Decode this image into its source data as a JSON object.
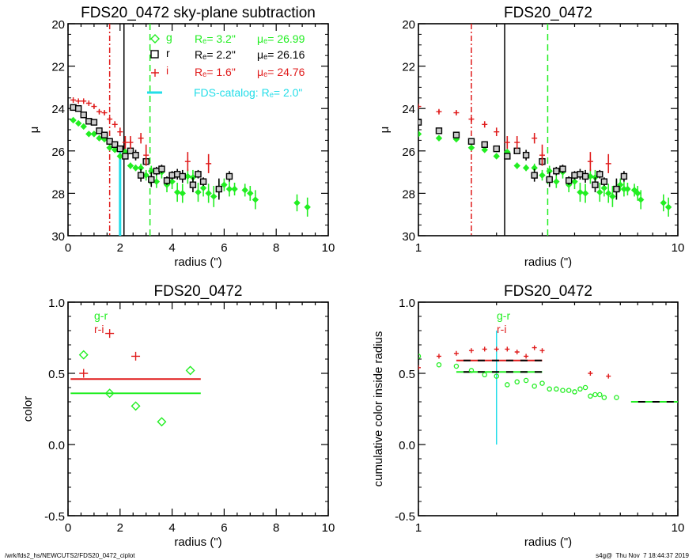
{
  "footer": {
    "left": "/wrk/fds2_hs/NEWCUTS2/FDS20_0472_ciplot",
    "right": "s4g@  Thu Nov  7 18:44:37 2019"
  },
  "colors": {
    "g": "#22ee22",
    "r": "#000000",
    "i": "#e01c1c",
    "catalog": "#22dde8"
  },
  "chart_data": [
    {
      "id": "profile-linear",
      "type": "scatter",
      "title": "FDS20_0472 sky-plane subtraction",
      "xlabel": "radius (\")",
      "ylabel": "μ",
      "xscale": "linear",
      "xlim": [
        0,
        10
      ],
      "ylim": [
        30,
        20
      ],
      "xticks": [
        0,
        2,
        4,
        6,
        8,
        10
      ],
      "yticks": [
        20,
        22,
        24,
        26,
        28,
        30
      ],
      "legend": [
        {
          "band": "g",
          "marker": "diamond",
          "text_re": "Rₑ=   3.2\"",
          "text_mu": "μₑ= 26.99"
        },
        {
          "band": "r",
          "marker": "square",
          "text_re": "Rₑ=   2.2\"",
          "text_mu": "μₑ= 26.16"
        },
        {
          "band": "i",
          "marker": "plus",
          "text_re": "Rₑ=   1.6\"",
          "text_mu": "μₑ= 24.76"
        },
        {
          "band": "catalog",
          "marker": "line",
          "text": "FDS-catalog: Rₑ=   2.0\""
        }
      ],
      "vlines": [
        {
          "x": 1.6,
          "color_key": "i",
          "style": "dashdot"
        },
        {
          "x": 2.15,
          "color_key": "r",
          "style": "solid"
        },
        {
          "x": 3.15,
          "color_key": "g",
          "style": "dashed"
        }
      ],
      "catalog_line": {
        "x": 2.0,
        "y_from": 26.0,
        "y_to": 30.0
      },
      "series": [
        {
          "name": "g",
          "marker": "diamond-filled",
          "x": [
            0.2,
            0.4,
            0.6,
            0.8,
            1.0,
            1.2,
            1.4,
            1.6,
            1.8,
            2.0,
            2.2,
            2.4,
            2.6,
            2.8,
            3.0,
            3.2,
            3.4,
            3.6,
            3.8,
            4.0,
            4.2,
            4.4,
            4.6,
            4.8,
            5.0,
            5.2,
            5.4,
            5.6,
            5.8,
            6.0,
            6.2,
            6.4,
            6.8,
            7.0,
            7.2,
            8.8,
            9.2
          ],
          "y": [
            24.55,
            24.7,
            24.85,
            25.2,
            25.2,
            25.4,
            25.45,
            25.85,
            25.95,
            26.25,
            26.05,
            26.7,
            26.8,
            26.8,
            27.15,
            26.95,
            27.45,
            27.0,
            27.6,
            27.45,
            27.95,
            28.0,
            27.2,
            27.25,
            27.95,
            27.75,
            28.0,
            28.15,
            27.8,
            27.6,
            27.8,
            27.8,
            27.85,
            28.0,
            28.3,
            28.45,
            28.65
          ],
          "err": [
            0.05,
            0.05,
            0.05,
            0.05,
            0.05,
            0.05,
            0.05,
            0.05,
            0.05,
            0.1,
            0.1,
            0.15,
            0.15,
            0.2,
            0.25,
            0.25,
            0.3,
            0.3,
            0.35,
            0.35,
            0.45,
            0.45,
            0.35,
            0.35,
            0.45,
            0.4,
            0.45,
            0.5,
            0.4,
            0.3,
            0.35,
            0.3,
            0.3,
            0.35,
            0.45,
            0.4,
            0.45
          ]
        },
        {
          "name": "r",
          "marker": "square",
          "x": [
            0.2,
            0.4,
            0.6,
            0.8,
            1.0,
            1.2,
            1.4,
            1.6,
            1.8,
            2.0,
            2.2,
            2.4,
            2.6,
            2.8,
            3.0,
            3.2,
            3.4,
            3.6,
            3.8,
            4.0,
            4.2,
            4.4,
            4.8,
            5.0,
            5.2,
            5.8,
            6.2
          ],
          "y": [
            23.95,
            24.0,
            24.3,
            24.6,
            24.65,
            25.05,
            25.25,
            25.55,
            25.7,
            25.9,
            26.25,
            26.0,
            26.2,
            27.15,
            26.5,
            27.35,
            26.95,
            26.85,
            27.4,
            27.15,
            27.1,
            27.2,
            27.6,
            27.1,
            27.45,
            27.8,
            27.2
          ],
          "err": [
            0.03,
            0.03,
            0.04,
            0.05,
            0.05,
            0.06,
            0.07,
            0.08,
            0.09,
            0.1,
            0.15,
            0.15,
            0.25,
            0.3,
            0.2,
            0.35,
            0.2,
            0.2,
            0.2,
            0.2,
            0.25,
            0.3,
            0.35,
            0.2,
            0.2,
            0.5,
            0.25
          ]
        },
        {
          "name": "i",
          "marker": "plus",
          "x": [
            0.2,
            0.4,
            0.6,
            0.8,
            1.0,
            1.2,
            1.4,
            1.6,
            1.8,
            2.0,
            2.2,
            2.4,
            2.8,
            3.0,
            4.6,
            5.4
          ],
          "y": [
            23.6,
            23.65,
            23.65,
            23.75,
            23.9,
            24.15,
            24.2,
            24.5,
            24.75,
            25.1,
            25.6,
            25.6,
            25.4,
            26.2,
            26.5,
            26.6
          ],
          "err": [
            0.05,
            0.05,
            0.05,
            0.05,
            0.08,
            0.08,
            0.08,
            0.1,
            0.15,
            0.2,
            0.3,
            0.3,
            0.25,
            0.5,
            0.45,
            0.45
          ]
        }
      ]
    },
    {
      "id": "profile-log",
      "type": "scatter",
      "title": "FDS20_0472",
      "xlabel": "radius (\")",
      "ylabel": "μ",
      "xscale": "log",
      "xlim": [
        1,
        10
      ],
      "ylim": [
        30,
        20
      ],
      "xticks": [
        1,
        10
      ],
      "yticks": [
        20,
        22,
        24,
        26,
        28,
        30
      ],
      "vlines": [
        {
          "x": 1.6,
          "color_key": "i",
          "style": "dashdot"
        },
        {
          "x": 2.15,
          "color_key": "r",
          "style": "solid"
        },
        {
          "x": 3.15,
          "color_key": "g",
          "style": "dashed"
        }
      ],
      "series_ref": "profile-linear"
    },
    {
      "id": "color-profile",
      "type": "scatter",
      "title": "FDS20_0472",
      "xlabel": "radius (\")",
      "ylabel": "color",
      "xscale": "linear",
      "xlim": [
        0,
        10
      ],
      "ylim": [
        -0.5,
        1.0
      ],
      "xticks": [
        0,
        2,
        4,
        6,
        8,
        10
      ],
      "yticks": [
        -0.5,
        0.0,
        0.5,
        1.0
      ],
      "ytick_labels": [
        "-0.5",
        "0.0",
        "0.5",
        "1.0"
      ],
      "legend": [
        {
          "name": "g-r",
          "color_key": "g"
        },
        {
          "name": "r-i",
          "color_key": "i"
        }
      ],
      "series": [
        {
          "name": "g-r",
          "marker": "diamond",
          "x": [
            0.6,
            1.6,
            2.6,
            3.6,
            4.7
          ],
          "y": [
            0.63,
            0.36,
            0.27,
            0.16,
            0.52
          ]
        },
        {
          "name": "r-i",
          "marker": "plus",
          "x": [
            0.6,
            1.6,
            2.6
          ],
          "y": [
            0.5,
            0.78,
            0.62
          ]
        }
      ],
      "hlines": [
        {
          "name": "r-i mean",
          "color_key": "i",
          "y": 0.46,
          "x_from": 0.1,
          "x_to": 5.1
        },
        {
          "name": "g-r mean",
          "color_key": "g",
          "y": 0.36,
          "x_from": 0.1,
          "x_to": 5.1
        }
      ]
    },
    {
      "id": "cumulative-color",
      "type": "scatter",
      "title": "FDS20_0472",
      "xlabel": "radius (\")",
      "ylabel": "cumulative color inside radius",
      "xscale": "log",
      "xlim": [
        1,
        10
      ],
      "ylim": [
        -0.5,
        1.0
      ],
      "xticks": [
        1,
        10
      ],
      "yticks": [
        -0.5,
        0.0,
        0.5,
        1.0
      ],
      "ytick_labels": [
        "-0.5",
        "0.0",
        "0.5",
        "1.0"
      ],
      "legend": [
        {
          "name": "g-r",
          "color_key": "g"
        },
        {
          "name": "r-i",
          "color_key": "i"
        }
      ],
      "catalog_line": {
        "x": 2.0,
        "y_from": 0.0,
        "y_to": 0.8
      },
      "series": [
        {
          "name": "g-r",
          "marker": "circle",
          "x": [
            1.0,
            1.2,
            1.4,
            1.6,
            1.8,
            2.0,
            2.2,
            2.4,
            2.6,
            2.8,
            3.0,
            3.2,
            3.4,
            3.6,
            3.8,
            4.0,
            4.2,
            4.4,
            4.6,
            4.8,
            5.0,
            5.2,
            5.8
          ],
          "y": [
            0.62,
            0.56,
            0.55,
            0.52,
            0.49,
            0.48,
            0.42,
            0.44,
            0.45,
            0.41,
            0.43,
            0.39,
            0.39,
            0.38,
            0.38,
            0.37,
            0.39,
            0.4,
            0.34,
            0.35,
            0.35,
            0.33,
            0.33
          ]
        },
        {
          "name": "r-i",
          "marker": "plus",
          "x": [
            1.0,
            1.2,
            1.4,
            1.6,
            1.8,
            2.0,
            2.2,
            2.4,
            2.6,
            2.8,
            3.0,
            4.6,
            5.4
          ],
          "y": [
            0.54,
            0.62,
            0.64,
            0.66,
            0.67,
            0.67,
            0.67,
            0.65,
            0.62,
            0.68,
            0.66,
            0.5,
            0.48
          ]
        }
      ],
      "hlines": [
        {
          "name": "r-i mean",
          "color_key": "i",
          "y": 0.59,
          "x_from": 1.4,
          "x_to": 3.0,
          "dashed_black": true
        },
        {
          "name": "g-r mean",
          "color_key": "g",
          "y": 0.51,
          "x_from": 1.4,
          "x_to": 3.0,
          "dashed_black": true
        },
        {
          "name": "g-r outer",
          "color_key": "g",
          "y": 0.3,
          "x_from": 6.6,
          "x_to": 10.0,
          "dashed_black": true
        }
      ]
    }
  ]
}
